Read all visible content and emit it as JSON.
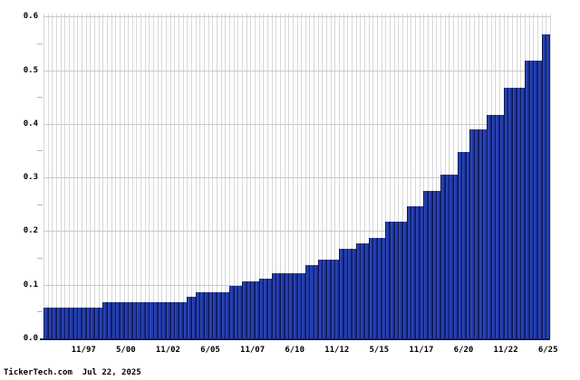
{
  "chart_data": {
    "type": "bar",
    "description": "Quarterly dividend history, stepped increases over time",
    "ylim": [
      0,
      0.6055
    ],
    "y_ticks": [
      {
        "label": "0.0",
        "value": 0.0
      },
      {
        "label": "0.1",
        "value": 0.1
      },
      {
        "label": "0.2",
        "value": 0.2
      },
      {
        "label": "0.3",
        "value": 0.3
      },
      {
        "label": "0.4",
        "value": 0.4
      },
      {
        "label": "0.5",
        "value": 0.5
      },
      {
        "label": "0.6",
        "value": 0.6
      }
    ],
    "y_minor_ticks": [
      0.05,
      0.15,
      0.25,
      0.35,
      0.45,
      0.55
    ],
    "x_tick_labels": [
      "11/97",
      "5/00",
      "11/02",
      "6/05",
      "11/07",
      "6/10",
      "11/12",
      "5/15",
      "11/17",
      "6/20",
      "11/22",
      "6/25"
    ],
    "x_tick_bar_indices": [
      9,
      19,
      29,
      39,
      49,
      59,
      69,
      79,
      89,
      99,
      109,
      119
    ],
    "grid": "on",
    "values": [
      0.057,
      0.057,
      0.057,
      0.057,
      0.057,
      0.057,
      0.057,
      0.057,
      0.057,
      0.057,
      0.057,
      0.057,
      0.057,
      0.057,
      0.068,
      0.068,
      0.068,
      0.068,
      0.068,
      0.068,
      0.068,
      0.068,
      0.068,
      0.068,
      0.068,
      0.068,
      0.068,
      0.068,
      0.068,
      0.068,
      0.068,
      0.068,
      0.068,
      0.068,
      0.077,
      0.077,
      0.086,
      0.086,
      0.086,
      0.086,
      0.086,
      0.086,
      0.086,
      0.086,
      0.097,
      0.097,
      0.097,
      0.107,
      0.107,
      0.107,
      0.107,
      0.111,
      0.111,
      0.111,
      0.121,
      0.121,
      0.121,
      0.121,
      0.121,
      0.121,
      0.121,
      0.121,
      0.137,
      0.137,
      0.137,
      0.147,
      0.147,
      0.147,
      0.147,
      0.147,
      0.167,
      0.167,
      0.167,
      0.167,
      0.177,
      0.177,
      0.177,
      0.188,
      0.188,
      0.188,
      0.188,
      0.217,
      0.217,
      0.217,
      0.217,
      0.217,
      0.246,
      0.246,
      0.246,
      0.246,
      0.275,
      0.275,
      0.275,
      0.275,
      0.306,
      0.306,
      0.306,
      0.306,
      0.347,
      0.347,
      0.347,
      0.389,
      0.389,
      0.389,
      0.389,
      0.417,
      0.417,
      0.417,
      0.417,
      0.468,
      0.468,
      0.468,
      0.468,
      0.468,
      0.517,
      0.517,
      0.517,
      0.517,
      0.567,
      0.567
    ]
  },
  "colors": {
    "bar_fill": "#2138a8",
    "bar_highlight": "#3050c0",
    "bar_edge": "#0b1650",
    "grid_vertical": "#d8d8d8",
    "grid_horizontal": "#c9c9c9",
    "axis_line": "#101c5e",
    "tick": "#b5b5b5",
    "text": "#000000",
    "background": "#ffffff"
  },
  "footer": {
    "source": "TickerTech.com",
    "date": "Jul 22, 2025"
  }
}
